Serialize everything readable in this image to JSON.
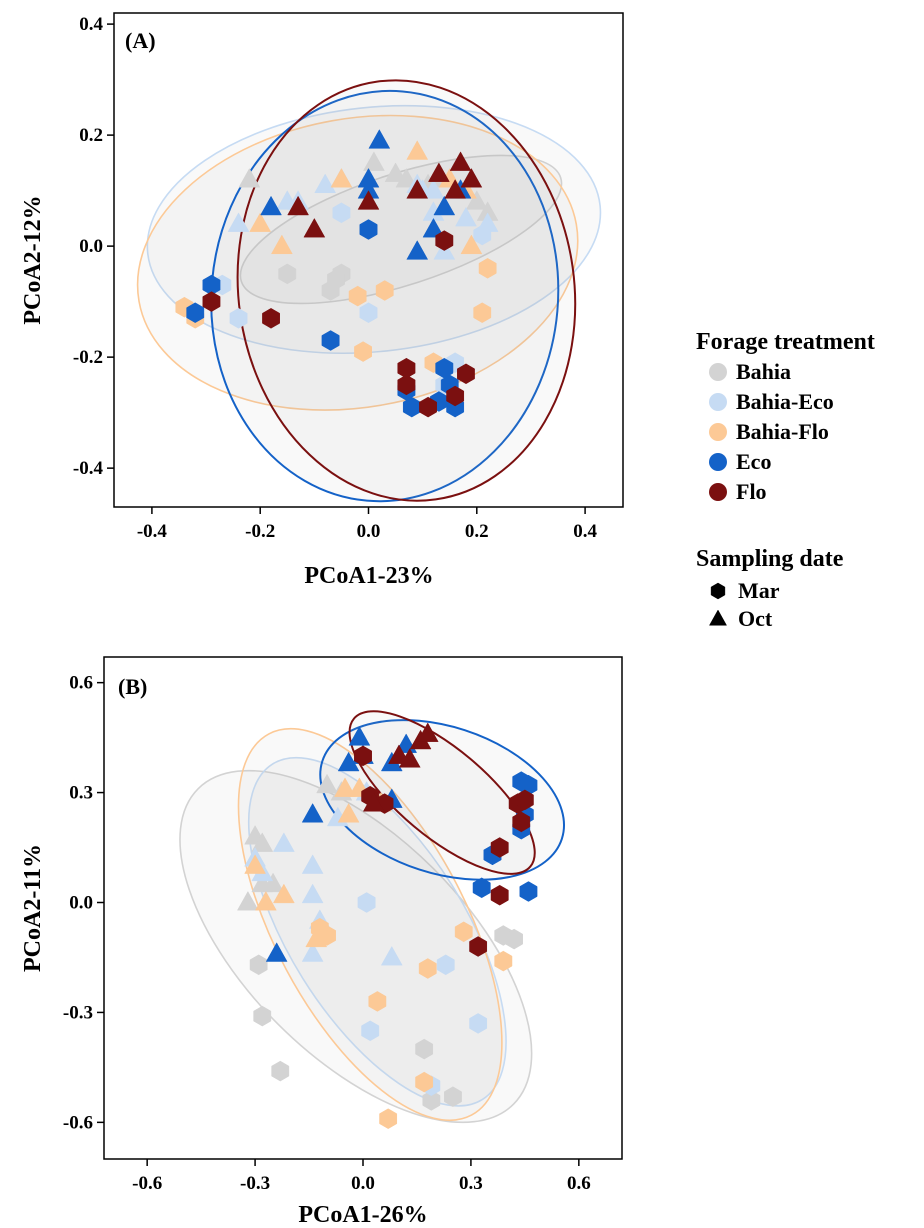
{
  "legend": {
    "treatment_title": "Forage treatment",
    "treatments": [
      {
        "name": "Bahia",
        "color": "#d3d3d3"
      },
      {
        "name": "Bahia-Eco",
        "color": "#c6dbf3"
      },
      {
        "name": "Bahia-Flo",
        "color": "#fcc996"
      },
      {
        "name": "Eco",
        "color": "#1462c8"
      },
      {
        "name": "Flo",
        "color": "#7b1010"
      }
    ],
    "date_title": "Sampling date",
    "dates": [
      {
        "name": "Mar",
        "shape": "hexagon"
      },
      {
        "name": "Oct",
        "shape": "triangle"
      }
    ]
  },
  "chart_data": [
    {
      "type": "scatter",
      "panel_label": "(A)",
      "xlabel": "PCoA1-23%",
      "ylabel": "PCoA2-12%",
      "xlim": [
        -0.47,
        0.47
      ],
      "ylim": [
        -0.47,
        0.42
      ],
      "xticks": [
        -0.4,
        -0.2,
        0.0,
        0.2,
        0.4
      ],
      "xtick_labels": [
        "-0.4",
        "-0.2",
        "0.0",
        "0.2",
        "0.4"
      ],
      "yticks": [
        -0.4,
        -0.2,
        0.0,
        0.2,
        0.4
      ],
      "ytick_labels": [
        "-0.4",
        "-0.2",
        "0.0",
        "0.2",
        "0.4"
      ],
      "ellipses": [
        {
          "group": "Bahia",
          "cx": 0.06,
          "cy": 0.03,
          "rx": 0.31,
          "ry": 0.1,
          "angle_deg": 18
        },
        {
          "group": "Bahia-Eco",
          "cx": 0.01,
          "cy": 0.03,
          "rx": 0.42,
          "ry": 0.22,
          "angle_deg": 6
        },
        {
          "group": "Bahia-Flo",
          "cx": -0.02,
          "cy": -0.03,
          "rx": 0.41,
          "ry": 0.26,
          "angle_deg": 10
        },
        {
          "group": "Eco",
          "cx": 0.03,
          "cy": -0.09,
          "rx": 0.32,
          "ry": 0.37,
          "angle_deg": -5
        },
        {
          "group": "Flo",
          "cx": 0.07,
          "cy": -0.08,
          "rx": 0.31,
          "ry": 0.38,
          "angle_deg": 8
        }
      ],
      "series": [
        {
          "name": "Bahia",
          "date": "Mar",
          "points": [
            [
              -0.15,
              -0.05
            ],
            [
              -0.07,
              -0.08
            ],
            [
              -0.05,
              -0.05
            ],
            [
              -0.06,
              -0.06
            ]
          ]
        },
        {
          "name": "Bahia",
          "date": "Oct",
          "points": [
            [
              -0.22,
              0.12
            ],
            [
              0.01,
              0.15
            ],
            [
              0.05,
              0.13
            ],
            [
              0.11,
              0.11
            ],
            [
              0.13,
              0.12
            ],
            [
              0.2,
              0.08
            ],
            [
              0.22,
              0.06
            ],
            [
              0.07,
              0.12
            ]
          ]
        },
        {
          "name": "Bahia-Eco",
          "date": "Mar",
          "points": [
            [
              -0.24,
              -0.13
            ],
            [
              -0.27,
              -0.07
            ],
            [
              0.0,
              -0.12
            ],
            [
              -0.05,
              0.06
            ],
            [
              0.14,
              -0.25
            ],
            [
              0.16,
              -0.21
            ],
            [
              0.21,
              0.02
            ]
          ]
        },
        {
          "name": "Bahia-Eco",
          "date": "Oct",
          "points": [
            [
              -0.24,
              0.04
            ],
            [
              -0.15,
              0.08
            ],
            [
              -0.13,
              0.08
            ],
            [
              -0.08,
              0.11
            ],
            [
              -0.05,
              0.12
            ],
            [
              0.09,
              0.11
            ],
            [
              0.12,
              0.1
            ],
            [
              0.14,
              -0.01
            ],
            [
              0.22,
              0.04
            ],
            [
              0.1,
              0.1
            ],
            [
              0.12,
              0.06
            ],
            [
              0.18,
              0.05
            ]
          ]
        },
        {
          "name": "Bahia-Flo",
          "date": "Mar",
          "points": [
            [
              -0.34,
              -0.11
            ],
            [
              -0.32,
              -0.13
            ],
            [
              -0.02,
              -0.09
            ],
            [
              0.03,
              -0.08
            ],
            [
              -0.01,
              -0.19
            ],
            [
              0.22,
              -0.04
            ],
            [
              0.21,
              -0.12
            ],
            [
              0.12,
              -0.21
            ]
          ]
        },
        {
          "name": "Bahia-Flo",
          "date": "Oct",
          "points": [
            [
              -0.2,
              0.04
            ],
            [
              -0.16,
              0.0
            ],
            [
              -0.05,
              0.12
            ],
            [
              0.09,
              0.17
            ],
            [
              0.15,
              0.12
            ],
            [
              0.18,
              0.1
            ],
            [
              0.19,
              0.0
            ]
          ]
        },
        {
          "name": "Eco",
          "date": "Mar",
          "points": [
            [
              -0.29,
              -0.07
            ],
            [
              -0.32,
              -0.12
            ],
            [
              -0.07,
              -0.17
            ],
            [
              0.0,
              0.03
            ],
            [
              0.07,
              -0.26
            ],
            [
              0.08,
              -0.29
            ],
            [
              0.13,
              -0.28
            ],
            [
              0.15,
              -0.25
            ],
            [
              0.16,
              -0.29
            ],
            [
              0.14,
              -0.22
            ]
          ]
        },
        {
          "name": "Eco",
          "date": "Oct",
          "points": [
            [
              -0.18,
              0.07
            ],
            [
              0.02,
              0.19
            ],
            [
              0.0,
              0.12
            ],
            [
              0.0,
              0.1
            ],
            [
              0.12,
              0.03
            ],
            [
              0.14,
              0.07
            ],
            [
              0.09,
              -0.01
            ],
            [
              0.17,
              0.1
            ]
          ]
        },
        {
          "name": "Flo",
          "date": "Mar",
          "points": [
            [
              -0.29,
              -0.1
            ],
            [
              -0.18,
              -0.13
            ],
            [
              0.07,
              -0.22
            ],
            [
              0.07,
              -0.25
            ],
            [
              0.14,
              0.01
            ],
            [
              0.18,
              -0.23
            ],
            [
              0.16,
              -0.27
            ],
            [
              0.11,
              -0.29
            ]
          ]
        },
        {
          "name": "Flo",
          "date": "Oct",
          "points": [
            [
              -0.13,
              0.07
            ],
            [
              -0.1,
              0.03
            ],
            [
              0.0,
              0.08
            ],
            [
              0.09,
              0.1
            ],
            [
              0.13,
              0.13
            ],
            [
              0.17,
              0.15
            ],
            [
              0.19,
              0.12
            ],
            [
              0.16,
              0.1
            ]
          ]
        }
      ]
    },
    {
      "type": "scatter",
      "panel_label": "(B)",
      "xlabel": "PCoA1-26%",
      "ylabel": "PCoA2-11%",
      "xlim": [
        -0.72,
        0.72
      ],
      "ylim": [
        -0.7,
        0.67
      ],
      "xticks": [
        -0.6,
        -0.3,
        0.0,
        0.3,
        0.6
      ],
      "xtick_labels": [
        "-0.6",
        "-0.3",
        "0.0",
        "0.3",
        "0.6"
      ],
      "yticks": [
        -0.6,
        -0.3,
        0.0,
        0.3,
        0.6
      ],
      "ytick_labels": [
        "-0.6",
        "-0.3",
        "0.0",
        "0.3",
        "0.6"
      ],
      "ellipses": [
        {
          "group": "Bahia",
          "cx": -0.02,
          "cy": -0.12,
          "rx": 0.62,
          "ry": 0.3,
          "angle_deg": -45
        },
        {
          "group": "Bahia-Eco",
          "cx": 0.04,
          "cy": -0.08,
          "rx": 0.55,
          "ry": 0.24,
          "angle_deg": -58
        },
        {
          "group": "Bahia-Flo",
          "cx": 0.02,
          "cy": -0.06,
          "rx": 0.6,
          "ry": 0.26,
          "angle_deg": -62
        },
        {
          "group": "Eco",
          "cx": 0.22,
          "cy": 0.28,
          "rx": 0.35,
          "ry": 0.2,
          "angle_deg": -18
        },
        {
          "group": "Flo",
          "cx": 0.22,
          "cy": 0.3,
          "rx": 0.32,
          "ry": 0.12,
          "angle_deg": -40
        }
      ],
      "series": [
        {
          "name": "Bahia",
          "date": "Mar",
          "points": [
            [
              -0.29,
              -0.17
            ],
            [
              -0.28,
              -0.31
            ],
            [
              -0.23,
              -0.46
            ],
            [
              0.17,
              -0.4
            ],
            [
              0.19,
              -0.54
            ],
            [
              0.25,
              -0.53
            ],
            [
              0.39,
              -0.09
            ],
            [
              0.42,
              -0.1
            ]
          ]
        },
        {
          "name": "Bahia",
          "date": "Oct",
          "points": [
            [
              -0.3,
              0.18
            ],
            [
              -0.28,
              0.16
            ],
            [
              -0.32,
              0.0
            ],
            [
              -0.28,
              0.05
            ],
            [
              -0.25,
              0.05
            ],
            [
              -0.1,
              0.32
            ],
            [
              -0.06,
              0.3
            ]
          ]
        },
        {
          "name": "Bahia-Eco",
          "date": "Mar",
          "points": [
            [
              0.01,
              0.0
            ],
            [
              0.02,
              -0.35
            ],
            [
              0.23,
              -0.17
            ],
            [
              0.32,
              -0.33
            ],
            [
              0.19,
              -0.5
            ]
          ]
        },
        {
          "name": "Bahia-Eco",
          "date": "Oct",
          "points": [
            [
              -0.22,
              0.16
            ],
            [
              -0.3,
              0.12
            ],
            [
              -0.28,
              0.08
            ],
            [
              -0.14,
              0.1
            ],
            [
              -0.14,
              0.02
            ],
            [
              -0.12,
              -0.05
            ],
            [
              -0.14,
              -0.14
            ],
            [
              -0.07,
              0.23
            ],
            [
              0.03,
              0.27
            ],
            [
              0.08,
              -0.15
            ],
            [
              0.01,
              0.3
            ]
          ]
        },
        {
          "name": "Bahia-Flo",
          "date": "Mar",
          "points": [
            [
              -0.12,
              -0.07
            ],
            [
              -0.1,
              -0.09
            ],
            [
              0.04,
              -0.27
            ],
            [
              0.07,
              -0.59
            ],
            [
              0.18,
              -0.18
            ],
            [
              0.28,
              -0.08
            ],
            [
              0.39,
              -0.16
            ],
            [
              0.17,
              -0.49
            ]
          ]
        },
        {
          "name": "Bahia-Flo",
          "date": "Oct",
          "points": [
            [
              -0.3,
              0.1
            ],
            [
              -0.27,
              0.0
            ],
            [
              -0.22,
              0.02
            ],
            [
              -0.05,
              0.31
            ],
            [
              -0.01,
              0.31
            ],
            [
              0.05,
              0.27
            ],
            [
              -0.04,
              0.24
            ],
            [
              -0.13,
              -0.1
            ]
          ]
        },
        {
          "name": "Eco",
          "date": "Mar",
          "points": [
            [
              0.33,
              0.04
            ],
            [
              0.36,
              0.13
            ],
            [
              0.44,
              0.33
            ],
            [
              0.46,
              0.32
            ],
            [
              0.45,
              0.24
            ],
            [
              0.44,
              0.2
            ],
            [
              0.46,
              0.03
            ]
          ]
        },
        {
          "name": "Eco",
          "date": "Oct",
          "points": [
            [
              -0.14,
              0.24
            ],
            [
              -0.04,
              0.38
            ],
            [
              0.0,
              0.4
            ],
            [
              -0.01,
              0.45
            ],
            [
              0.08,
              0.38
            ],
            [
              0.12,
              0.43
            ],
            [
              -0.24,
              -0.14
            ],
            [
              0.08,
              0.28
            ]
          ]
        },
        {
          "name": "Flo",
          "date": "Mar",
          "points": [
            [
              0.0,
              0.4
            ],
            [
              0.38,
              0.15
            ],
            [
              0.43,
              0.27
            ],
            [
              0.45,
              0.28
            ],
            [
              0.44,
              0.22
            ],
            [
              0.38,
              0.02
            ],
            [
              0.32,
              -0.12
            ],
            [
              0.02,
              0.29
            ],
            [
              0.06,
              0.27
            ]
          ]
        },
        {
          "name": "Flo",
          "date": "Oct",
          "points": [
            [
              0.03,
              0.27
            ],
            [
              0.1,
              0.4
            ],
            [
              0.13,
              0.39
            ],
            [
              0.16,
              0.44
            ],
            [
              0.18,
              0.46
            ]
          ]
        }
      ]
    }
  ]
}
